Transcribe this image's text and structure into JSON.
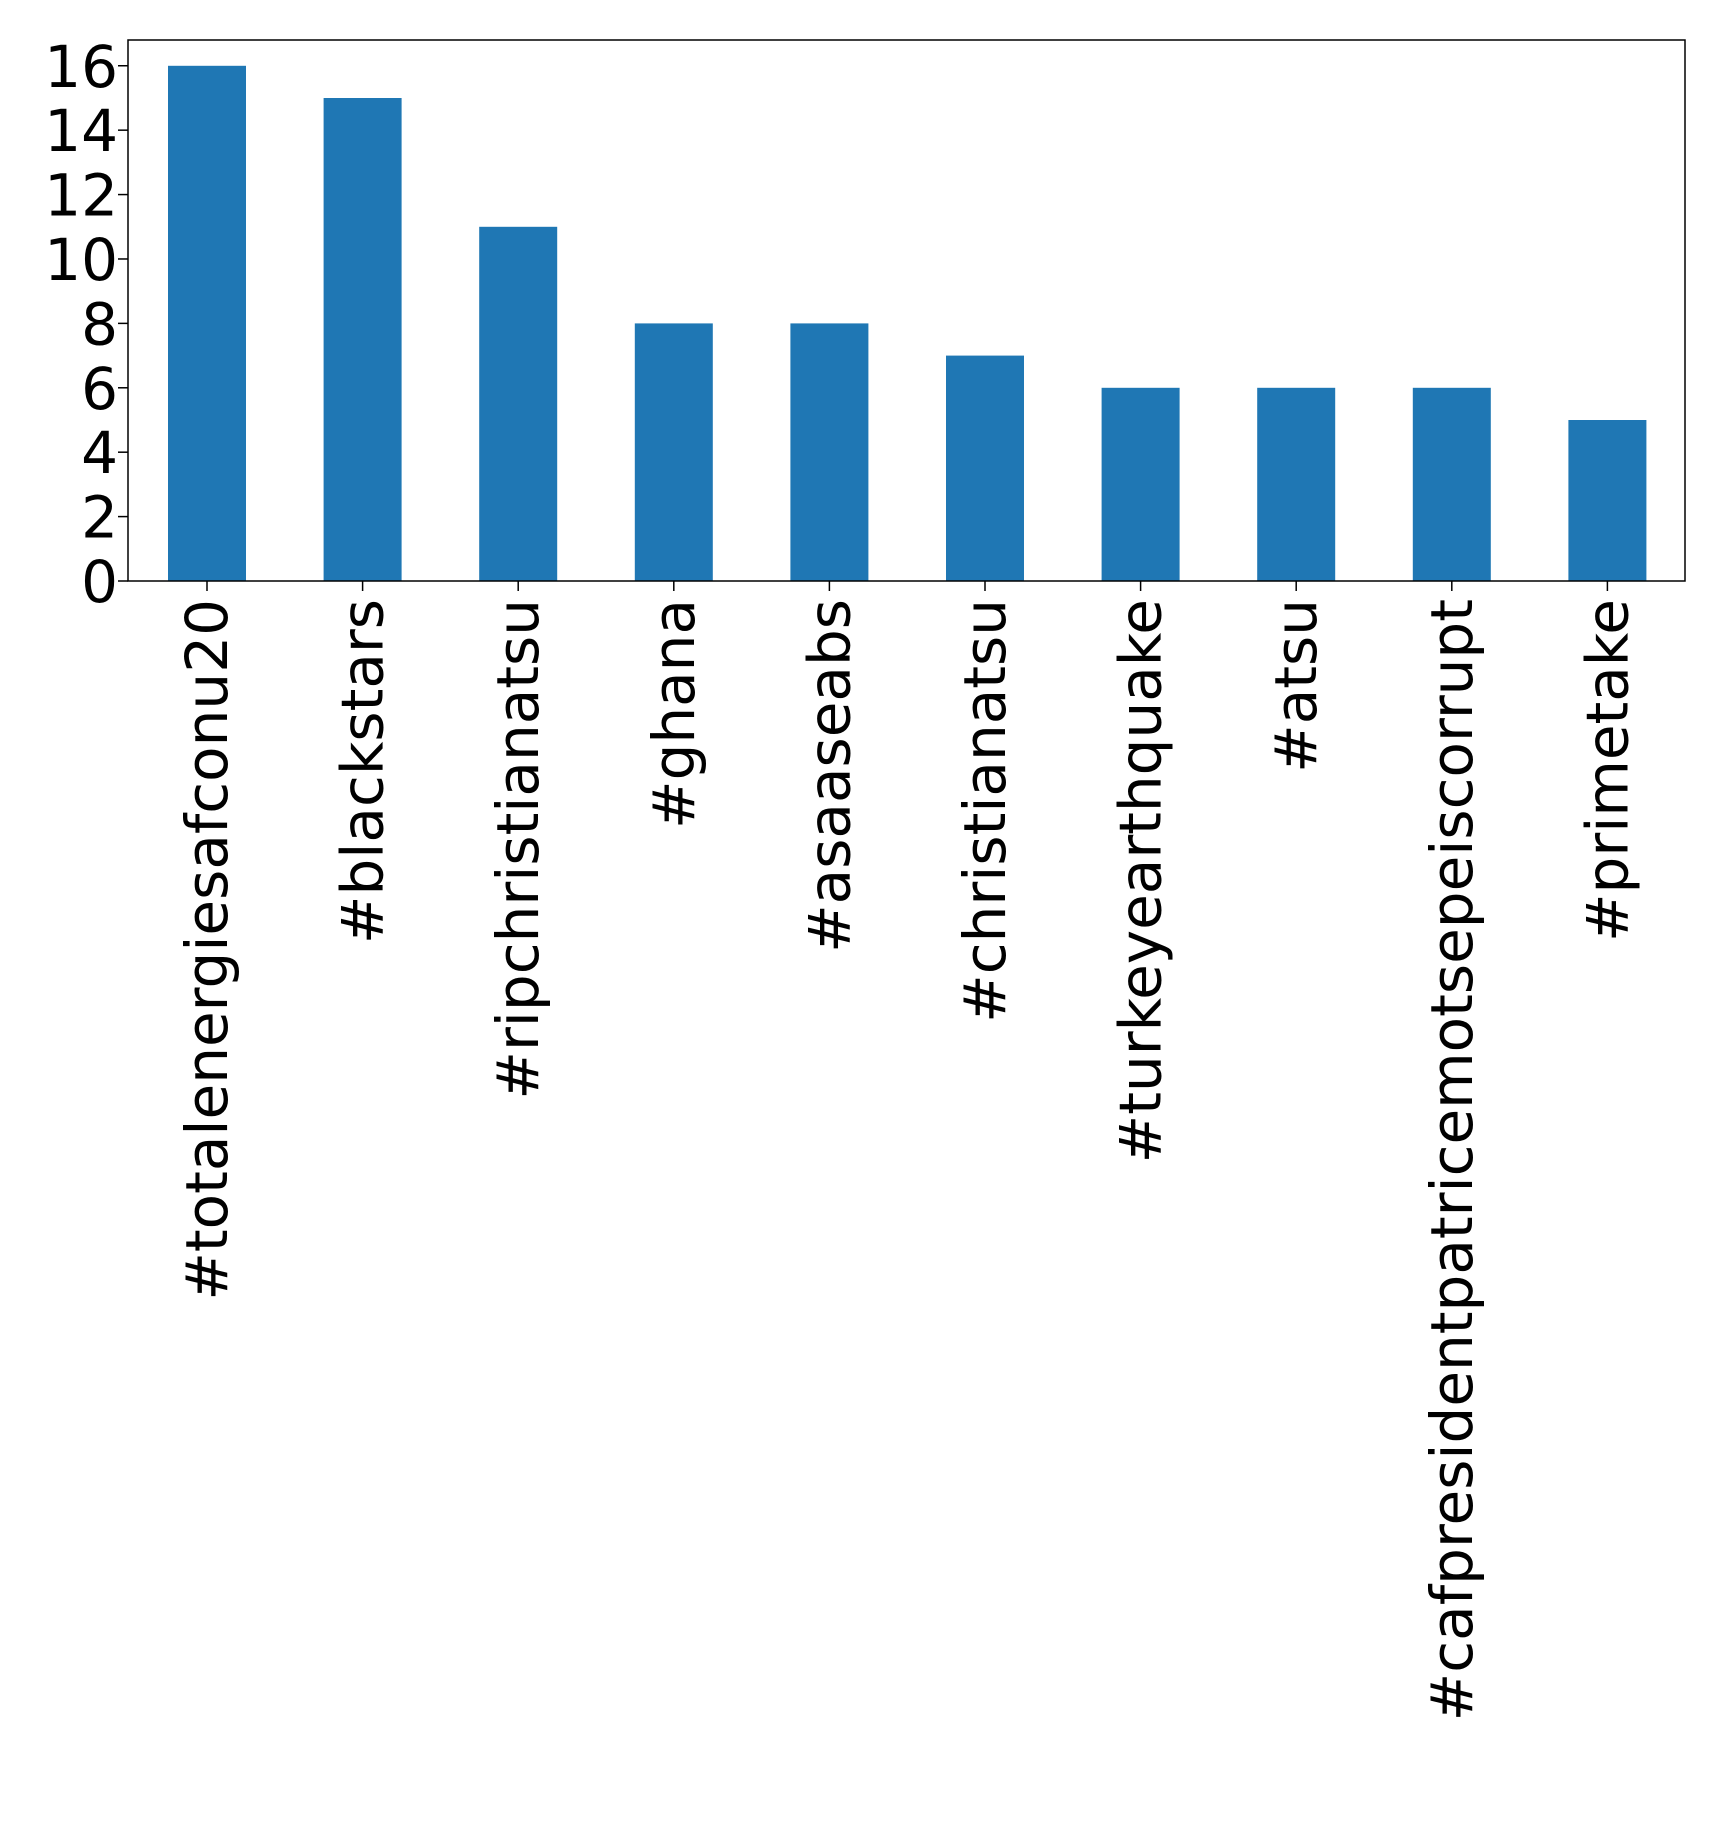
{
  "chart_data": {
    "type": "bar",
    "categories": [
      "#totalenergiesafconu20",
      "#blackstars",
      "#ripchristianatsu",
      "#ghana",
      "#asaaseabs",
      "#christianatsu",
      "#turkeyearthquake",
      "#atsu",
      "#cafpresidentpatricemotsepeiscorrupt",
      "#primetake"
    ],
    "values": [
      16,
      15,
      11,
      8,
      8,
      7,
      6,
      6,
      6,
      5
    ],
    "title": "",
    "xlabel": "",
    "ylabel": "",
    "ylim": [
      0,
      16.8
    ],
    "yticks": [
      0,
      2,
      4,
      6,
      8,
      10,
      12,
      14,
      16
    ],
    "bar_color": "#1f77b4",
    "grid": false,
    "legend": "none"
  }
}
